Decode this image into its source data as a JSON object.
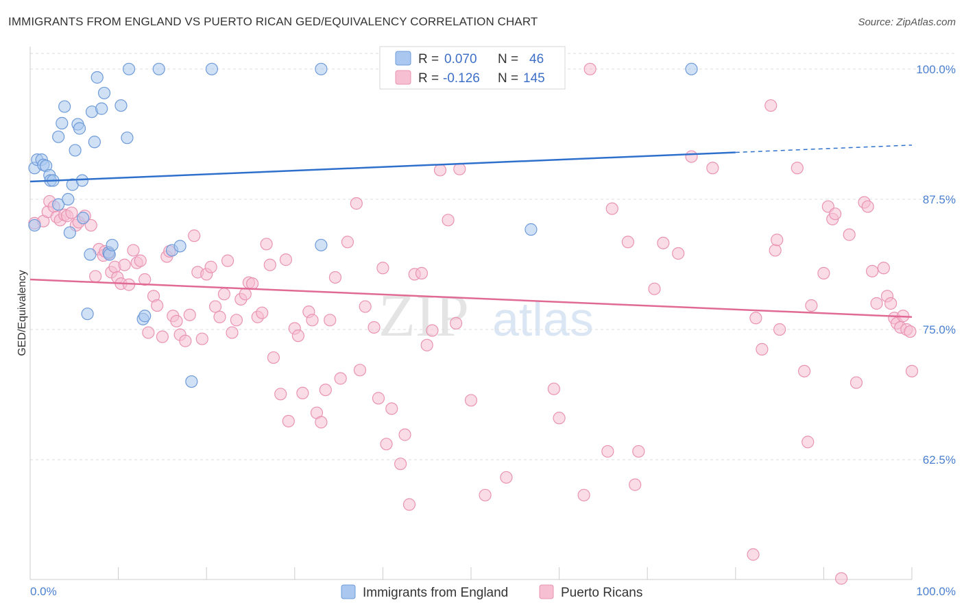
{
  "title": "IMMIGRANTS FROM ENGLAND VS PUERTO RICAN GED/EQUIVALENCY CORRELATION CHART",
  "source": "Source: ZipAtlas.com",
  "watermark": {
    "zip": "ZIP",
    "atlas": "atlas"
  },
  "colors": {
    "blue_fill": "#aac8ef",
    "blue_stroke": "#6e9ad8",
    "blue_line": "#2f6fcc",
    "pink_fill": "#f6bfd2",
    "pink_stroke": "#e993b3",
    "pink_line": "#e06a94",
    "tick_label": "#4a7fd0",
    "grid": "#dddddd"
  },
  "legend": {
    "row1": {
      "r_label": "R =",
      "r_value": "0.070",
      "n_label": "N =",
      "n_value": "46"
    },
    "row2": {
      "r_label": "R =",
      "r_value": "-0.126",
      "n_label": "N =",
      "n_value": "145"
    }
  },
  "bottom_legend": [
    "Immigrants from England",
    "Puerto Ricans"
  ],
  "chart_data": {
    "type": "scatter",
    "xlabel": "",
    "ylabel": "GED/Equivalency",
    "xlim": [
      0,
      100
    ],
    "ylim": [
      51,
      101.5
    ],
    "x_tick_labels": [
      "0.0%",
      "100.0%"
    ],
    "y_ticks": [
      {
        "value": 100,
        "label": "100.0%"
      },
      {
        "value": 87.5,
        "label": "87.5%"
      },
      {
        "value": 75,
        "label": "75.0%"
      },
      {
        "value": 62.5,
        "label": "62.5%"
      }
    ],
    "grid": true,
    "series": [
      {
        "name": "Immigrants from England",
        "trend": {
          "x0": 0,
          "y0": 89.2,
          "x1": 80,
          "y1": 92.0,
          "dash_to_x": 100,
          "dash_to_y": 92.7
        },
        "points": [
          [
            0.5,
            85.0
          ],
          [
            0.5,
            90.5
          ],
          [
            0.8,
            91.3
          ],
          [
            1.3,
            91.3
          ],
          [
            1.5,
            90.8
          ],
          [
            1.8,
            90.7
          ],
          [
            2.2,
            89.8
          ],
          [
            2.3,
            89.3
          ],
          [
            2.6,
            89.3
          ],
          [
            3.2,
            87.0
          ],
          [
            3.2,
            93.5
          ],
          [
            3.6,
            94.8
          ],
          [
            3.9,
            96.4
          ],
          [
            4.3,
            87.5
          ],
          [
            4.5,
            84.3
          ],
          [
            4.8,
            88.9
          ],
          [
            5.1,
            92.2
          ],
          [
            5.4,
            94.7
          ],
          [
            5.6,
            94.3
          ],
          [
            5.9,
            89.3
          ],
          [
            6.0,
            85.7
          ],
          [
            6.5,
            76.5
          ],
          [
            6.8,
            82.2
          ],
          [
            7.0,
            95.9
          ],
          [
            7.3,
            93.0
          ],
          [
            7.6,
            99.2
          ],
          [
            8.1,
            96.2
          ],
          [
            8.4,
            97.7
          ],
          [
            8.9,
            82.4
          ],
          [
            9.0,
            82.2
          ],
          [
            9.3,
            83.1
          ],
          [
            10.3,
            96.5
          ],
          [
            11.0,
            93.4
          ],
          [
            11.2,
            100.0
          ],
          [
            12.8,
            76.0
          ],
          [
            13.0,
            76.3
          ],
          [
            14.6,
            100.0
          ],
          [
            16.1,
            82.6
          ],
          [
            17.0,
            83.0
          ],
          [
            18.3,
            70.0
          ],
          [
            20.6,
            100.0
          ],
          [
            33.0,
            83.1
          ],
          [
            33.0,
            100.0
          ],
          [
            56.0,
            100.0
          ],
          [
            56.8,
            84.6
          ],
          [
            75.0,
            100.0
          ]
        ]
      },
      {
        "name": "Puerto Ricans",
        "trend": {
          "x0": 0,
          "y0": 79.8,
          "x1": 100,
          "y1": 76.2
        },
        "points": [
          [
            0.5,
            85.2
          ],
          [
            1.5,
            85.4
          ],
          [
            2.0,
            86.3
          ],
          [
            2.2,
            87.3
          ],
          [
            2.7,
            86.8
          ],
          [
            3.0,
            85.8
          ],
          [
            3.4,
            85.5
          ],
          [
            3.9,
            86.0
          ],
          [
            4.2,
            85.9
          ],
          [
            4.7,
            86.2
          ],
          [
            5.2,
            85.0
          ],
          [
            5.5,
            85.3
          ],
          [
            6.2,
            85.9
          ],
          [
            6.9,
            85.0
          ],
          [
            7.4,
            80.1
          ],
          [
            7.8,
            82.7
          ],
          [
            8.3,
            82.1
          ],
          [
            8.5,
            82.5
          ],
          [
            8.9,
            82.3
          ],
          [
            9.2,
            80.5
          ],
          [
            9.6,
            81.0
          ],
          [
            9.9,
            80.0
          ],
          [
            10.3,
            79.4
          ],
          [
            10.7,
            81.2
          ],
          [
            11.2,
            79.3
          ],
          [
            11.7,
            82.6
          ],
          [
            12.1,
            81.4
          ],
          [
            12.5,
            81.6
          ],
          [
            13.0,
            79.8
          ],
          [
            13.4,
            74.7
          ],
          [
            14.0,
            78.2
          ],
          [
            14.4,
            77.3
          ],
          [
            15.0,
            74.3
          ],
          [
            15.5,
            82.0
          ],
          [
            15.8,
            82.5
          ],
          [
            16.2,
            76.3
          ],
          [
            16.6,
            75.8
          ],
          [
            17.0,
            74.5
          ],
          [
            17.6,
            73.9
          ],
          [
            18.1,
            76.4
          ],
          [
            18.6,
            84.0
          ],
          [
            19.0,
            80.5
          ],
          [
            19.5,
            74.1
          ],
          [
            20.0,
            80.3
          ],
          [
            20.5,
            81.0
          ],
          [
            21.0,
            77.2
          ],
          [
            21.5,
            76.2
          ],
          [
            22.0,
            78.4
          ],
          [
            22.4,
            81.6
          ],
          [
            22.9,
            74.7
          ],
          [
            23.4,
            75.9
          ],
          [
            23.9,
            77.9
          ],
          [
            24.4,
            78.4
          ],
          [
            24.8,
            79.5
          ],
          [
            25.2,
            79.4
          ],
          [
            25.8,
            76.2
          ],
          [
            26.3,
            76.6
          ],
          [
            26.8,
            83.2
          ],
          [
            27.2,
            81.2
          ],
          [
            27.6,
            72.3
          ],
          [
            28.4,
            68.8
          ],
          [
            29.0,
            81.7
          ],
          [
            29.3,
            66.2
          ],
          [
            30.0,
            75.1
          ],
          [
            30.4,
            74.4
          ],
          [
            30.9,
            68.9
          ],
          [
            31.6,
            76.7
          ],
          [
            32.0,
            75.9
          ],
          [
            32.5,
            67.0
          ],
          [
            33.0,
            66.1
          ],
          [
            33.5,
            69.2
          ],
          [
            34.0,
            75.9
          ],
          [
            34.6,
            80.0
          ],
          [
            35.2,
            70.3
          ],
          [
            36.0,
            83.4
          ],
          [
            37.0,
            87.1
          ],
          [
            37.4,
            71.1
          ],
          [
            38.0,
            77.2
          ],
          [
            39.0,
            75.2
          ],
          [
            39.5,
            68.4
          ],
          [
            40.0,
            80.9
          ],
          [
            40.4,
            64.0
          ],
          [
            41.0,
            67.4
          ],
          [
            42.0,
            62.1
          ],
          [
            42.5,
            64.9
          ],
          [
            43.0,
            58.2
          ],
          [
            43.6,
            80.3
          ],
          [
            44.4,
            80.4
          ],
          [
            45.0,
            73.5
          ],
          [
            45.6,
            74.9
          ],
          [
            46.5,
            90.3
          ],
          [
            47.4,
            85.5
          ],
          [
            48.3,
            75.6
          ],
          [
            48.7,
            90.4
          ],
          [
            50.0,
            68.2
          ],
          [
            51.6,
            59.1
          ],
          [
            53.0,
            100.0
          ],
          [
            54.0,
            60.8
          ],
          [
            56.0,
            100.0
          ],
          [
            58.0,
            100.0
          ],
          [
            59.4,
            69.3
          ],
          [
            60.0,
            66.5
          ],
          [
            62.8,
            59.1
          ],
          [
            63.5,
            100.0
          ],
          [
            65.5,
            63.3
          ],
          [
            66.0,
            86.6
          ],
          [
            67.8,
            83.4
          ],
          [
            68.6,
            60.1
          ],
          [
            69.0,
            63.3
          ],
          [
            70.8,
            78.9
          ],
          [
            71.8,
            83.3
          ],
          [
            73.5,
            82.3
          ],
          [
            75.0,
            91.6
          ],
          [
            77.4,
            90.5
          ],
          [
            82.0,
            53.4
          ],
          [
            82.3,
            76.1
          ],
          [
            83.0,
            73.1
          ],
          [
            84.0,
            96.5
          ],
          [
            84.5,
            82.6
          ],
          [
            84.7,
            83.6
          ],
          [
            85.0,
            75.0
          ],
          [
            87.0,
            90.5
          ],
          [
            87.8,
            71.0
          ],
          [
            88.2,
            64.2
          ],
          [
            88.6,
            77.3
          ],
          [
            90.0,
            80.4
          ],
          [
            90.5,
            86.8
          ],
          [
            91.0,
            85.6
          ],
          [
            91.3,
            86.1
          ],
          [
            92.0,
            51.1
          ],
          [
            92.9,
            84.1
          ],
          [
            93.7,
            69.9
          ],
          [
            94.6,
            87.2
          ],
          [
            95.0,
            86.8
          ],
          [
            95.5,
            80.6
          ],
          [
            96.0,
            77.5
          ],
          [
            96.8,
            80.9
          ],
          [
            97.2,
            78.2
          ],
          [
            97.6,
            77.5
          ],
          [
            98.0,
            76.1
          ],
          [
            98.3,
            75.6
          ],
          [
            98.7,
            75.2
          ],
          [
            99.0,
            76.3
          ],
          [
            99.4,
            75.0
          ],
          [
            99.8,
            74.8
          ],
          [
            100.0,
            71.0
          ]
        ]
      }
    ]
  }
}
